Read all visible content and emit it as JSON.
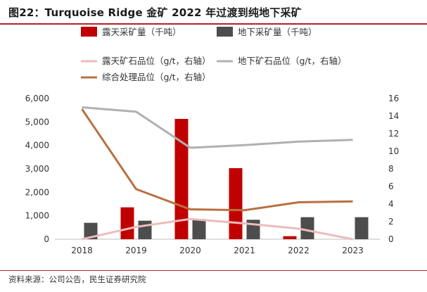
{
  "title": "图22：Turquoise Ridge 金矿 2022 年过渡到纯地下采矿",
  "source": "资料来源：公司公告，民生证券研究院",
  "chart_data": {
    "type": "bar+line",
    "categories": [
      "2018",
      "2019",
      "2020",
      "2021",
      "2022",
      "2023"
    ],
    "left_axis": {
      "min": 0,
      "max": 6000,
      "ticks": [
        "0",
        "1,000",
        "2,000",
        "3,000",
        "4,000",
        "5,000",
        "6,000"
      ],
      "tick_values": [
        0,
        1000,
        2000,
        3000,
        4000,
        5000,
        6000
      ]
    },
    "right_axis": {
      "min": 0,
      "max": 16,
      "ticks": [
        "0",
        "2",
        "4",
        "6",
        "8",
        "10",
        "12",
        "14",
        "16"
      ],
      "tick_values": [
        0,
        2,
        4,
        6,
        8,
        10,
        12,
        14,
        16
      ]
    },
    "grid": false,
    "legend_position": "top",
    "bar_series": [
      {
        "name": "露天采矿量（千吨）",
        "color": "#c00000",
        "axis": "left",
        "values": [
          0,
          1360,
          5130,
          3030,
          130,
          0
        ]
      },
      {
        "name": "地下采矿量（千吨）",
        "color": "#4d4d4d",
        "axis": "left",
        "values": [
          700,
          790,
          860,
          830,
          940,
          940
        ]
      }
    ],
    "line_series": [
      {
        "name": "露天矿石品位（g/t，右轴）",
        "color": "#eebbbb",
        "axis": "right",
        "values": [
          0,
          1.4,
          2.3,
          1.8,
          1.2,
          0
        ]
      },
      {
        "name": "地下矿石品位（g/t，右轴）",
        "color": "#b0b0b0",
        "axis": "right",
        "values": [
          15.0,
          14.5,
          10.4,
          10.7,
          11.1,
          11.3
        ]
      },
      {
        "name": "综合处理品位（g/t，右轴）",
        "color": "#b87040",
        "axis": "right",
        "values": [
          14.8,
          5.7,
          3.4,
          3.3,
          4.2,
          4.3
        ]
      }
    ]
  }
}
